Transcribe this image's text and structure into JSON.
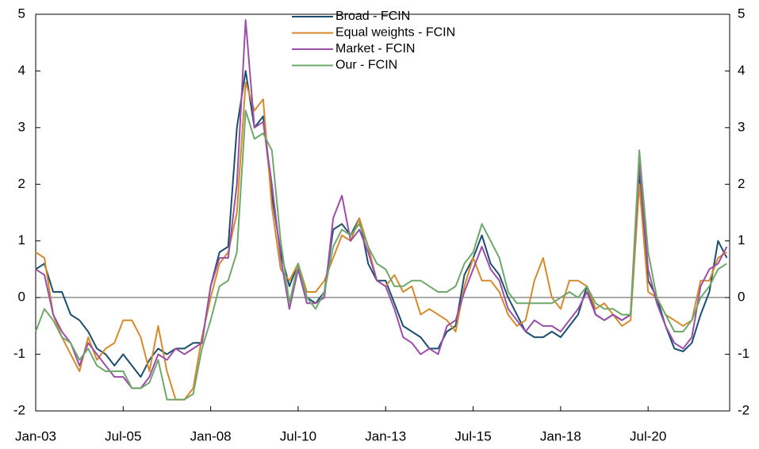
{
  "chart_data": {
    "type": "line",
    "categories": [
      "Jan-03",
      null,
      null,
      null,
      null,
      null,
      null,
      null,
      null,
      null,
      "Jul-05",
      null,
      null,
      null,
      null,
      null,
      null,
      null,
      null,
      null,
      "Jan-08",
      null,
      null,
      null,
      null,
      null,
      null,
      null,
      null,
      null,
      "Jul-10",
      null,
      null,
      null,
      null,
      null,
      null,
      null,
      null,
      null,
      "Jan-13",
      null,
      null,
      null,
      null,
      null,
      null,
      null,
      null,
      null,
      "Jul-15",
      null,
      null,
      null,
      null,
      null,
      null,
      null,
      null,
      null,
      "Jan-18",
      null,
      null,
      null,
      null,
      null,
      null,
      null,
      null,
      null,
      "Jul-20",
      null,
      null,
      null,
      null,
      null,
      null,
      null,
      null,
      null
    ],
    "series": [
      {
        "name": "Broad - FCIN",
        "color": "#1c4f6e",
        "values": [
          0.5,
          0.6,
          0.1,
          0.1,
          -0.3,
          -0.4,
          -0.6,
          -0.9,
          -1.0,
          -1.2,
          -1.0,
          -1.2,
          -1.4,
          -1.1,
          -0.9,
          -1.0,
          -0.9,
          -0.9,
          -0.8,
          -0.8,
          0.2,
          0.8,
          0.9,
          3.0,
          4.0,
          3.0,
          3.2,
          1.8,
          0.8,
          0.2,
          0.6,
          0.0,
          -0.1,
          0.1,
          1.2,
          1.3,
          1.1,
          1.4,
          0.6,
          0.3,
          0.3,
          -0.1,
          -0.5,
          -0.6,
          -0.7,
          -0.9,
          -0.9,
          -0.6,
          -0.5,
          0.4,
          0.7,
          1.1,
          0.6,
          0.4,
          0.0,
          -0.3,
          -0.6,
          -0.7,
          -0.7,
          -0.6,
          -0.7,
          -0.5,
          -0.3,
          0.2,
          -0.3,
          -0.4,
          -0.3,
          -0.4,
          -0.3,
          2.2,
          0.3,
          0.0,
          -0.5,
          -0.9,
          -0.95,
          -0.8,
          -0.3,
          0.1,
          1.0,
          0.7
        ]
      },
      {
        "name": "Equal weights - FCIN",
        "color": "#d68a2e",
        "values": [
          0.8,
          0.7,
          -0.3,
          -0.7,
          -1.0,
          -1.3,
          -0.7,
          -1.1,
          -0.9,
          -0.8,
          -0.4,
          -0.4,
          -0.7,
          -1.3,
          -0.5,
          -1.3,
          -1.8,
          -1.8,
          -1.6,
          -0.7,
          0.0,
          0.6,
          0.8,
          1.5,
          3.8,
          3.3,
          3.5,
          1.6,
          0.5,
          0.3,
          0.6,
          0.1,
          0.1,
          0.3,
          0.7,
          1.1,
          1.0,
          1.4,
          0.9,
          0.3,
          0.2,
          0.4,
          0.1,
          0.2,
          -0.3,
          -0.2,
          -0.3,
          -0.4,
          -0.6,
          0.2,
          0.7,
          0.3,
          0.3,
          0.1,
          -0.3,
          -0.5,
          -0.4,
          0.3,
          0.7,
          0.0,
          -0.2,
          0.3,
          0.3,
          0.2,
          -0.2,
          -0.1,
          -0.3,
          -0.5,
          -0.4,
          2.0,
          0.1,
          0.0,
          -0.3,
          -0.4,
          -0.5,
          -0.4,
          0.3,
          0.3,
          0.7,
          0.8
        ]
      },
      {
        "name": "Market - FCIN",
        "color": "#9b4fa8",
        "values": [
          0.5,
          0.4,
          -0.3,
          -0.6,
          -0.8,
          -1.2,
          -0.8,
          -1.0,
          -1.2,
          -1.4,
          -1.4,
          -1.6,
          -1.6,
          -1.4,
          -1.0,
          -1.1,
          -0.9,
          -1.0,
          -0.9,
          -0.8,
          0.2,
          0.7,
          0.7,
          2.0,
          4.9,
          3.0,
          3.1,
          2.0,
          0.7,
          -0.2,
          0.5,
          -0.1,
          -0.1,
          0.0,
          1.4,
          1.8,
          1.0,
          1.2,
          0.8,
          0.3,
          0.2,
          -0.2,
          -0.7,
          -0.8,
          -1.0,
          -0.9,
          -1.0,
          -0.5,
          -0.4,
          0.1,
          0.5,
          0.9,
          0.5,
          0.3,
          -0.2,
          -0.4,
          -0.6,
          -0.4,
          -0.5,
          -0.5,
          -0.6,
          -0.4,
          -0.2,
          0.1,
          -0.3,
          -0.4,
          -0.3,
          -0.4,
          -0.3,
          2.4,
          0.5,
          -0.1,
          -0.5,
          -0.8,
          -0.9,
          -0.7,
          0.2,
          0.5,
          0.6,
          0.9
        ]
      },
      {
        "name": "Our - FCIN",
        "color": "#6fa86c",
        "values": [
          -0.6,
          -0.2,
          -0.4,
          -0.7,
          -0.8,
          -1.1,
          -0.9,
          -1.2,
          -1.3,
          -1.3,
          -1.3,
          -1.6,
          -1.6,
          -1.5,
          -1.1,
          -1.8,
          -1.8,
          -1.8,
          -1.7,
          -0.9,
          -0.4,
          0.2,
          0.3,
          0.8,
          3.3,
          2.8,
          2.9,
          2.6,
          1.0,
          -0.1,
          0.6,
          0.0,
          -0.2,
          0.1,
          0.9,
          1.2,
          1.1,
          1.3,
          0.9,
          0.6,
          0.5,
          0.2,
          0.2,
          0.3,
          0.3,
          0.2,
          0.1,
          0.1,
          0.2,
          0.6,
          0.8,
          1.3,
          1.0,
          0.7,
          0.1,
          -0.1,
          -0.1,
          -0.1,
          -0.1,
          -0.1,
          0.0,
          0.1,
          0.0,
          0.2,
          -0.1,
          -0.2,
          -0.2,
          -0.3,
          -0.3,
          2.6,
          0.8,
          0.0,
          -0.3,
          -0.6,
          -0.6,
          -0.4,
          0.0,
          0.2,
          0.5,
          0.6
        ]
      }
    ],
    "ylim": [
      -2,
      5
    ],
    "yticks": [
      -2,
      -1,
      0,
      1,
      2,
      3,
      4,
      5
    ],
    "y2lim": [
      -2,
      5
    ],
    "y2ticks": [
      -2,
      -1,
      0,
      1,
      2,
      3,
      4,
      5
    ],
    "legend": "upper center"
  }
}
